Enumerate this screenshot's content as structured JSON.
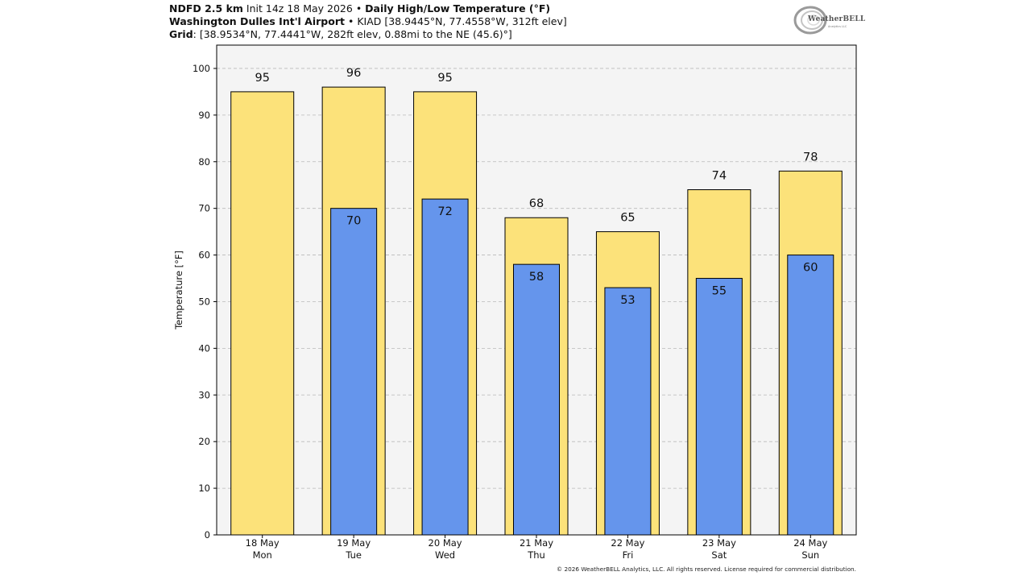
{
  "header": {
    "line1": {
      "model": "NDFD 2.5 km",
      "init": "Init 14z 18 May 2026",
      "sep": "•",
      "product": "Daily High/Low Temperature (°F)"
    },
    "line2": {
      "station": "Washington Dulles Int'l Airport",
      "sep": "•",
      "details": "KIAD [38.9445°N, 77.4558°W, 312ft elev]"
    },
    "line3": {
      "label": "Grid",
      "details": ": [38.9534°N, 77.4441°W, 282ft elev, 0.88mi to the NE (45.6)°]"
    }
  },
  "logo": {
    "text": "WeatherBELL",
    "subtext": "Analytics LLC"
  },
  "footer": {
    "copyright": "© 2026 WeatherBELL Analytics, LLC. All rights reserved. License required for commercial distribution."
  },
  "colors": {
    "high": "#fce27a",
    "low": "#6595ec",
    "plot_bg": "#f4f4f4",
    "grid": "#b9b9b9",
    "outline": "#000000"
  },
  "chart_data": {
    "type": "bar",
    "ylabel": "Temperature [°F]",
    "xlabel": "",
    "ylim": [
      0,
      105
    ],
    "yticks": [
      0,
      10,
      20,
      30,
      40,
      50,
      60,
      70,
      80,
      90,
      100
    ],
    "grid": "horizontal dashed",
    "categories": [
      [
        "18 May",
        "Mon"
      ],
      [
        "19 May",
        "Tue"
      ],
      [
        "20 May",
        "Wed"
      ],
      [
        "21 May",
        "Thu"
      ],
      [
        "22 May",
        "Fri"
      ],
      [
        "23 May",
        "Sat"
      ],
      [
        "24 May",
        "Sun"
      ]
    ],
    "series": [
      {
        "key": "high",
        "values": [
          95,
          96,
          95,
          68,
          65,
          74,
          78
        ]
      },
      {
        "key": "low",
        "values": [
          null,
          70,
          72,
          58,
          53,
          55,
          60
        ]
      }
    ]
  }
}
